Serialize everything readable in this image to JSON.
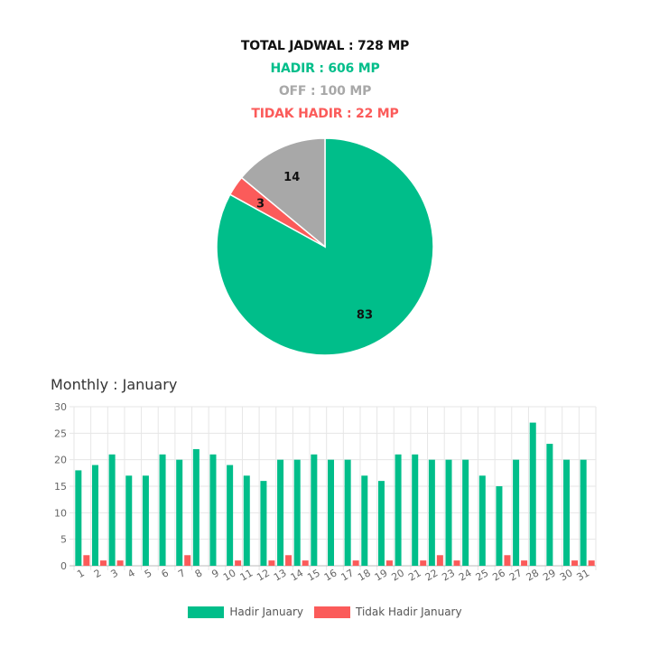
{
  "summary": {
    "total": "TOTAL JADWAL : 728 MP",
    "hadir": "HADIR : 606 MP",
    "off": "OFF : 100 MP",
    "tidak_hadir": "TIDAK HADIR : 22 MP"
  },
  "colors": {
    "hadir": "#00be8a",
    "off": "#a8a8a8",
    "tidak_hadir": "#fb5b5a"
  },
  "monthly": {
    "title": "Monthly : January"
  },
  "legend": {
    "hadir": "Hadir January",
    "tidak_hadir": "Tidak Hadir January"
  },
  "chart_data": [
    {
      "type": "pie",
      "slices": [
        {
          "key": "hadir",
          "label": "83",
          "value": 83,
          "color": "#00be8a"
        },
        {
          "key": "tidak_hadir",
          "label": "3",
          "value": 3,
          "color": "#fb5b5a"
        },
        {
          "key": "off",
          "label": "14",
          "value": 14,
          "color": "#a8a8a8"
        }
      ]
    },
    {
      "type": "bar",
      "categories": [
        "1",
        "2",
        "3",
        "4",
        "5",
        "6",
        "7",
        "8",
        "9",
        "10",
        "11",
        "12",
        "13",
        "14",
        "15",
        "16",
        "17",
        "18",
        "19",
        "20",
        "21",
        "22",
        "23",
        "24",
        "25",
        "26",
        "27",
        "28",
        "29",
        "30",
        "31"
      ],
      "series": [
        {
          "name": "Hadir January",
          "color": "#00be8a",
          "values": [
            18,
            19,
            21,
            17,
            17,
            21,
            20,
            22,
            21,
            19,
            17,
            16,
            20,
            20,
            21,
            20,
            20,
            17,
            16,
            21,
            21,
            20,
            20,
            20,
            17,
            15,
            20,
            27,
            23,
            20,
            20
          ]
        },
        {
          "name": "Tidak Hadir January",
          "color": "#fb5b5a",
          "values": [
            2,
            1,
            1,
            0,
            0,
            0,
            2,
            0,
            0,
            1,
            0,
            1,
            2,
            1,
            0,
            0,
            1,
            0,
            1,
            0,
            1,
            2,
            1,
            0,
            0,
            2,
            1,
            0,
            0,
            1,
            1
          ]
        }
      ],
      "yticks": [
        0,
        5,
        10,
        15,
        20,
        25,
        30
      ],
      "ylim": [
        0,
        30
      ],
      "grid": true,
      "legend_position": "bottom"
    }
  ]
}
